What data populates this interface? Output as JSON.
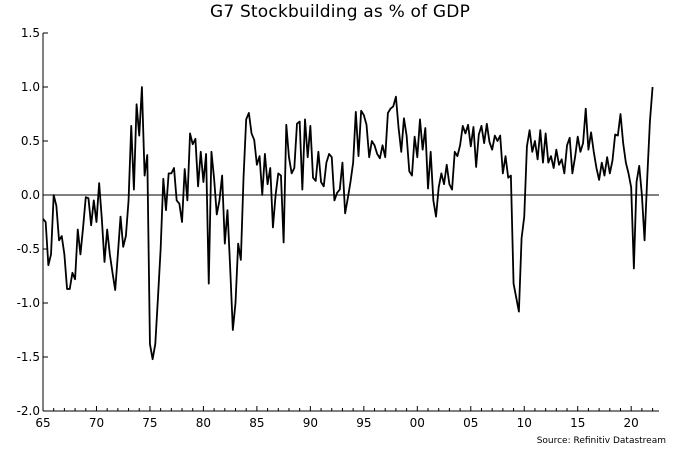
{
  "chart_data": {
    "type": "line",
    "title": "G7 Stockbuilding as % of GDP",
    "source": "Source: Refinitiv Datastream",
    "xlabel": "",
    "ylabel": "",
    "xlim": [
      1965,
      2022.6
    ],
    "ylim": [
      -2.0,
      1.5
    ],
    "x_ticks": [
      65,
      70,
      75,
      80,
      85,
      90,
      95,
      "00",
      "05",
      10,
      15,
      20
    ],
    "y_ticks": [
      "1.5",
      "1.0",
      "0.5",
      "0.0",
      "-0.5",
      "-1.0",
      "-1.5",
      "-2.0"
    ],
    "zero_line": true,
    "grid": false,
    "series": [
      {
        "x": [
          1965.0,
          1965.25,
          1965.5,
          1965.75,
          1966.0,
          1966.25,
          1966.5,
          1966.75,
          1967.0,
          1967.25,
          1967.5,
          1967.75,
          1968.0,
          1968.25,
          1968.5,
          1968.75,
          1969.0,
          1969.25,
          1969.5,
          1969.75,
          1970.0,
          1970.25,
          1970.5,
          1970.75,
          1971.0,
          1971.25,
          1971.5,
          1971.75,
          1972.0,
          1972.25,
          1972.5,
          1972.75,
          1973.0,
          1973.25,
          1973.5,
          1973.75,
          1974.0,
          1974.25,
          1974.5,
          1974.75,
          1975.0,
          1975.25,
          1975.5,
          1975.75,
          1976.0,
          1976.25,
          1976.5,
          1976.75,
          1977.0,
          1977.25,
          1977.5,
          1977.75,
          1978.0,
          1978.25,
          1978.5,
          1978.75,
          1979.0,
          1979.25,
          1979.5,
          1979.75,
          1980.0,
          1980.25,
          1980.5,
          1980.75,
          1981.0,
          1981.25,
          1981.5,
          1981.75,
          1982.0,
          1982.25,
          1982.5,
          1982.75,
          1983.0,
          1983.25,
          1983.5,
          1983.75,
          1984.0,
          1984.25,
          1984.5,
          1984.75,
          1985.0,
          1985.25,
          1985.5,
          1985.75,
          1986.0,
          1986.25,
          1986.5,
          1986.75,
          1987.0,
          1987.25,
          1987.5,
          1987.75,
          1988.0,
          1988.25,
          1988.5,
          1988.75,
          1989.0,
          1989.25,
          1989.5,
          1989.75,
          1990.0,
          1990.25,
          1990.5,
          1990.75,
          1991.0,
          1991.25,
          1991.5,
          1991.75,
          1992.0,
          1992.25,
          1992.5,
          1992.75,
          1993.0,
          1993.25,
          1993.5,
          1993.75,
          1994.0,
          1994.25,
          1994.5,
          1994.75,
          1995.0,
          1995.25,
          1995.5,
          1995.75,
          1996.0,
          1996.25,
          1996.5,
          1996.75,
          1997.0,
          1997.25,
          1997.5,
          1997.75,
          1998.0,
          1998.25,
          1998.5,
          1998.75,
          1999.0,
          1999.25,
          1999.5,
          1999.75,
          2000.0,
          2000.25,
          2000.5,
          2000.75,
          2001.0,
          2001.25,
          2001.5,
          2001.75,
          2002.0,
          2002.25,
          2002.5,
          2002.75,
          2003.0,
          2003.25,
          2003.5,
          2003.75,
          2004.0,
          2004.25,
          2004.5,
          2004.75,
          2005.0,
          2005.25,
          2005.5,
          2005.75,
          2006.0,
          2006.25,
          2006.5,
          2006.75,
          2007.0,
          2007.25,
          2007.5,
          2007.75,
          2008.0,
          2008.25,
          2008.5,
          2008.75,
          2009.0,
          2009.25,
          2009.5,
          2009.75,
          2010.0,
          2010.25,
          2010.5,
          2010.75,
          2011.0,
          2011.25,
          2011.5,
          2011.75,
          2012.0,
          2012.25,
          2012.5,
          2012.75,
          2013.0,
          2013.25,
          2013.5,
          2013.75,
          2014.0,
          2014.25,
          2014.5,
          2014.75,
          2015.0,
          2015.25,
          2015.5,
          2015.75,
          2016.0,
          2016.25,
          2016.5,
          2016.75,
          2017.0,
          2017.25,
          2017.5,
          2017.75,
          2018.0,
          2018.25,
          2018.5,
          2018.75,
          2019.0,
          2019.25,
          2019.5,
          2019.75,
          2020.0,
          2020.25,
          2020.5,
          2020.75,
          2021.0,
          2021.25,
          2021.5,
          2021.75,
          2022.0
        ],
        "y": [
          -0.22,
          -0.25,
          -0.65,
          -0.55,
          0.0,
          -0.1,
          -0.42,
          -0.38,
          -0.55,
          -0.87,
          -0.87,
          -0.72,
          -0.78,
          -0.32,
          -0.55,
          -0.3,
          -0.02,
          -0.03,
          -0.28,
          -0.05,
          -0.25,
          0.11,
          -0.22,
          -0.62,
          -0.32,
          -0.55,
          -0.72,
          -0.88,
          -0.55,
          -0.2,
          -0.48,
          -0.38,
          -0.05,
          0.64,
          0.05,
          0.84,
          0.55,
          1.0,
          0.18,
          0.37,
          -1.38,
          -1.52,
          -1.38,
          -0.95,
          -0.5,
          0.15,
          -0.14,
          0.2,
          0.2,
          0.25,
          -0.05,
          -0.08,
          -0.25,
          0.24,
          -0.05,
          0.57,
          0.47,
          0.52,
          0.08,
          0.4,
          0.12,
          0.38,
          -0.82,
          0.4,
          0.15,
          -0.18,
          -0.05,
          0.18,
          -0.45,
          -0.14,
          -0.67,
          -1.25,
          -1.0,
          -0.45,
          -0.6,
          0.16,
          0.7,
          0.76,
          0.57,
          0.51,
          0.28,
          0.36,
          0.0,
          0.38,
          0.1,
          0.25,
          -0.3,
          0.0,
          0.2,
          0.18,
          -0.44,
          0.65,
          0.35,
          0.2,
          0.25,
          0.66,
          0.68,
          0.05,
          0.7,
          0.35,
          0.64,
          0.16,
          0.13,
          0.4,
          0.12,
          0.08,
          0.3,
          0.38,
          0.35,
          -0.05,
          0.02,
          0.05,
          0.3,
          -0.17,
          -0.03,
          0.12,
          0.3,
          0.77,
          0.36,
          0.78,
          0.74,
          0.65,
          0.35,
          0.5,
          0.46,
          0.38,
          0.34,
          0.46,
          0.35,
          0.76,
          0.8,
          0.82,
          0.91,
          0.62,
          0.4,
          0.71,
          0.55,
          0.22,
          0.18,
          0.54,
          0.35,
          0.7,
          0.42,
          0.62,
          0.06,
          0.4,
          -0.05,
          -0.2,
          0.07,
          0.2,
          0.1,
          0.28,
          0.1,
          0.05,
          0.4,
          0.36,
          0.46,
          0.64,
          0.57,
          0.65,
          0.45,
          0.63,
          0.26,
          0.56,
          0.64,
          0.48,
          0.66,
          0.49,
          0.42,
          0.55,
          0.5,
          0.55,
          0.2,
          0.36,
          0.16,
          0.18,
          -0.82,
          -0.95,
          -1.08,
          -0.4,
          -0.2,
          0.45,
          0.6,
          0.4,
          0.5,
          0.33,
          0.6,
          0.3,
          0.57,
          0.3,
          0.36,
          0.25,
          0.42,
          0.28,
          0.33,
          0.2,
          0.46,
          0.53,
          0.2,
          0.35,
          0.54,
          0.4,
          0.48,
          0.8,
          0.42,
          0.58,
          0.4,
          0.25,
          0.14,
          0.3,
          0.18,
          0.35,
          0.2,
          0.32,
          0.56,
          0.55,
          0.75,
          0.48,
          0.3,
          0.2,
          0.07,
          -0.68,
          0.12,
          0.27,
          0.0,
          -0.42,
          0.16,
          0.68,
          1.0
        ]
      }
    ]
  }
}
